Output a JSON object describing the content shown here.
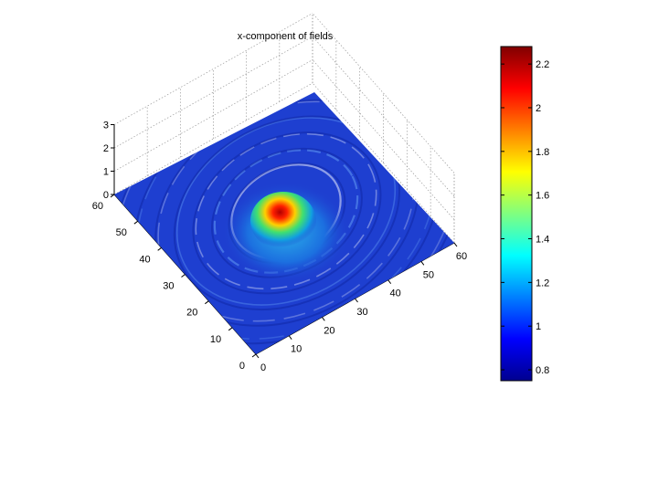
{
  "figure": {
    "title": "x-component of fields"
  },
  "chart_data": {
    "type": "surface",
    "title": "x-component of fields",
    "x": {
      "ticks": [
        0,
        10,
        20,
        30,
        40,
        50,
        60
      ],
      "range": [
        0,
        60
      ]
    },
    "y": {
      "ticks": [
        0,
        10,
        20,
        30,
        40,
        50,
        60
      ],
      "range": [
        0,
        60
      ]
    },
    "z": {
      "ticks": [
        0,
        1,
        2,
        3
      ],
      "range": [
        0,
        3
      ]
    },
    "colormap": "jet",
    "colorbar": {
      "ticks": [
        0.8,
        1,
        1.2,
        1.4,
        1.6,
        1.8,
        2,
        2.2
      ],
      "tick_labels": [
        "0.8",
        "1",
        "1.2",
        "1.4",
        "1.6",
        "1.8",
        "2",
        "2.2"
      ],
      "range": [
        0.75,
        2.28
      ]
    },
    "surface": {
      "baseline": 1.0,
      "peak": {
        "x": 30,
        "y": 30,
        "value": 2.28
      },
      "grid_size": 61
    },
    "grid": true
  }
}
